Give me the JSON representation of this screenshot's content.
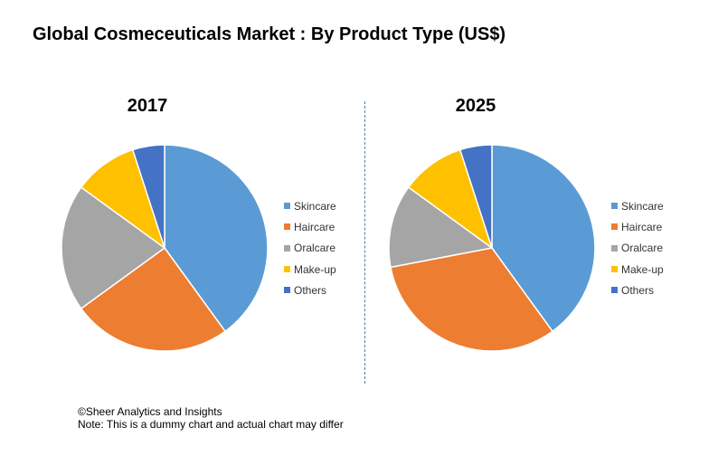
{
  "title": "Global Cosmeceuticals Market : By Product Type (US$)",
  "chart_data": [
    {
      "type": "pie",
      "title": "2017",
      "categories": [
        "Skincare",
        "Haircare",
        "Oralcare",
        "Make-up",
        "Others"
      ],
      "values": [
        40,
        25,
        20,
        10,
        5
      ],
      "colors": [
        "#5b9bd5",
        "#ed7d31",
        "#a5a5a5",
        "#ffc000",
        "#4472c4"
      ],
      "legend_position": "right"
    },
    {
      "type": "pie",
      "title": "2025",
      "categories": [
        "Skincare",
        "Haircare",
        "Oralcare",
        "Make-up",
        "Others"
      ],
      "values": [
        40,
        32,
        13,
        10,
        5
      ],
      "colors": [
        "#5b9bd5",
        "#ed7d31",
        "#a5a5a5",
        "#ffc000",
        "#4472c4"
      ],
      "legend_position": "right"
    }
  ],
  "footer": {
    "source": "©Sheer Analytics and Insights",
    "note": "Note: This is a dummy chart and actual chart may differ"
  }
}
